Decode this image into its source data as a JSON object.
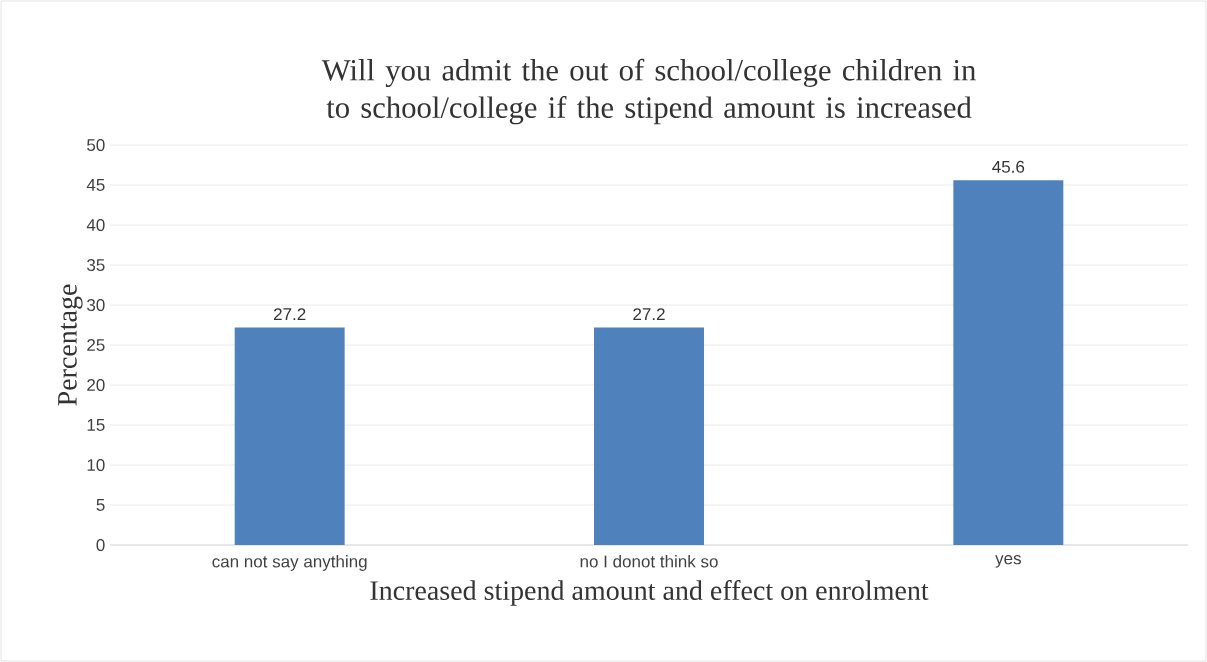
{
  "chart_data": {
    "type": "bar",
    "title": "Will you admit the out of school/college children in to school/college if the stipend amount is increased",
    "xlabel": "Increased stipend amount and effect on enrolment",
    "ylabel": "Percentage",
    "categories": [
      "can not say anything",
      "no I donot think so",
      "yes"
    ],
    "values": [
      27.2,
      27.2,
      45.6
    ],
    "color": "#4f81bd",
    "ylim": [
      0,
      50
    ],
    "yticks": [
      0,
      5,
      10,
      15,
      20,
      25,
      30,
      35,
      40,
      45,
      50
    ],
    "grid": "y",
    "data_labels": true
  }
}
